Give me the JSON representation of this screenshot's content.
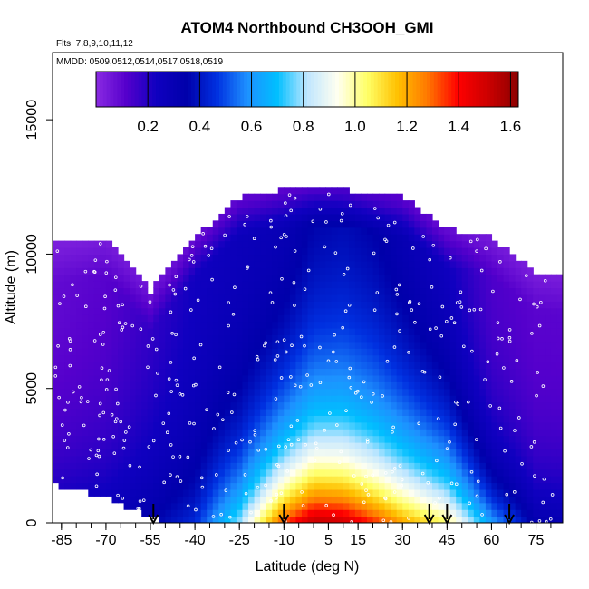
{
  "chart_data": {
    "type": "heatmap",
    "title": "ATOM4 Northbound CH3OOH_GMI",
    "flights_note": "Flts: 7,8,9,10,11,12",
    "dates_note": "MMDD: 0509,0512,0514,0517,0518,0519",
    "xlabel": "Latitude (deg N)",
    "ylabel": "Altitude (m)",
    "xlim": [
      -88,
      84
    ],
    "ylim": [
      0,
      17500
    ],
    "x_ticks": [
      -85,
      -70,
      -55,
      -40,
      -25,
      -10,
      5,
      15,
      30,
      45,
      60,
      75
    ],
    "y_ticks": [
      0,
      5000,
      10000,
      15000
    ],
    "colorbar": {
      "min": 0.0,
      "max": 1.63,
      "ticks": [
        0.2,
        0.4,
        0.6,
        0.8,
        1.0,
        1.2,
        1.4,
        1.6
      ],
      "colors": [
        "#8a2be2",
        "#5500cc",
        "#1000c0",
        "#0000aa",
        "#0030e0",
        "#1e90ff",
        "#00bfff",
        "#bfe6ff",
        "#fffff0",
        "#ffff66",
        "#ffc000",
        "#ff7700",
        "#ff0000",
        "#cc0000",
        "#8b0000"
      ]
    },
    "arrow_latitudes": [
      -54,
      -10,
      39,
      45,
      66
    ],
    "anchor_latitudes": [
      -86,
      -70,
      -55,
      -40,
      -25,
      -10,
      0,
      10,
      20,
      30,
      45,
      60,
      75,
      83
    ],
    "top_altitudes_m": [
      10300,
      10500,
      8500,
      10500,
      12000,
      12300,
      12400,
      12300,
      12100,
      12000,
      10800,
      10500,
      9200,
      9100
    ],
    "bottom_altitudes_m": [
      1500,
      1100,
      300,
      0,
      0,
      0,
      0,
      0,
      0,
      0,
      0,
      0,
      0,
      0
    ],
    "surface_values": [
      0.28,
      0.3,
      0.35,
      0.45,
      0.8,
      1.35,
      1.55,
      1.52,
      1.38,
      1.22,
      1.05,
      0.62,
      0.33,
      0.32
    ],
    "decay_scale_m": [
      3000,
      3200,
      3600,
      3200,
      3000,
      3400,
      3600,
      3600,
      3600,
      3600,
      3200,
      2400,
      2200,
      2200
    ],
    "upper_values": [
      0.08,
      0.1,
      0.15,
      0.22,
      0.25,
      0.25,
      0.3,
      0.32,
      0.3,
      0.25,
      0.2,
      0.12,
      0.1,
      0.1
    ]
  }
}
